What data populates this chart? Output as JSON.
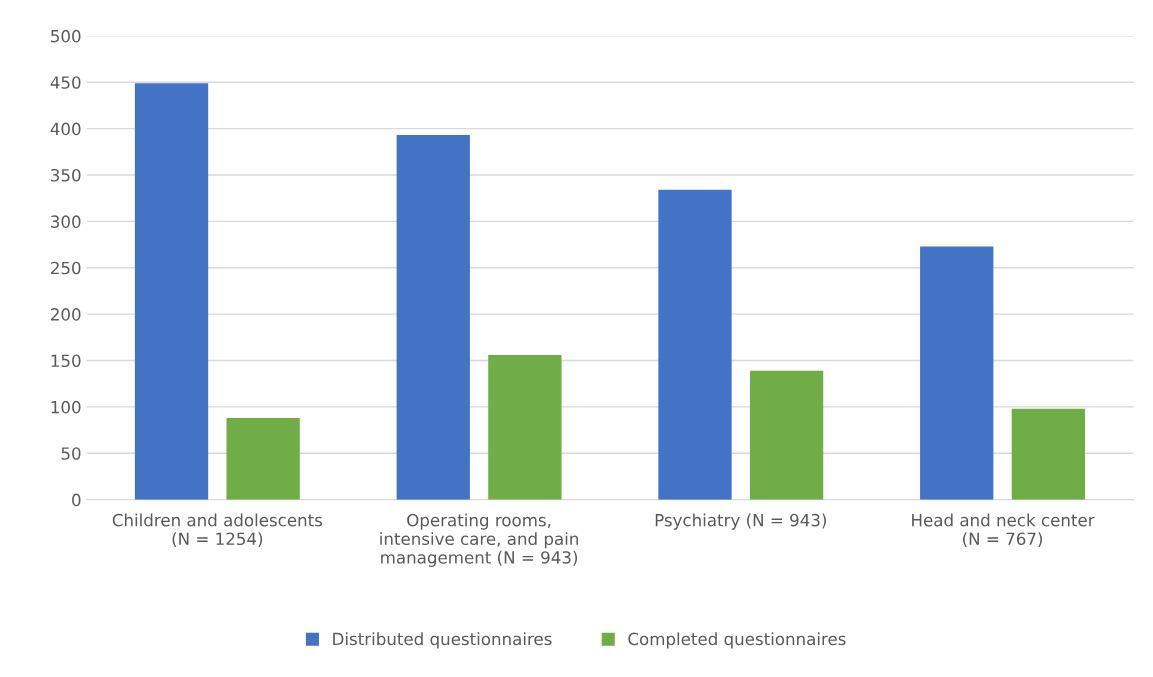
{
  "chart_data": {
    "type": "bar",
    "categories": [
      "Children and adolescents\n(N = 1254)",
      "Operating rooms,\nintensive care, and pain\nmanagement (N = 943)",
      "Psychiatry (N = 943)",
      "Head and neck center\n(N = 767)"
    ],
    "series": [
      {
        "name": "Distributed questionnaires",
        "color": "#4472c4",
        "values": [
          449,
          393,
          334,
          273
        ]
      },
      {
        "name": "Completed questionnaires",
        "color": "#70ad47",
        "values": [
          88,
          156,
          139,
          98
        ]
      }
    ],
    "ylim": [
      0,
      500
    ],
    "yticks": [
      0,
      50,
      100,
      150,
      200,
      250,
      300,
      350,
      400,
      450,
      500
    ],
    "grid": "y",
    "legend": "bottom"
  }
}
